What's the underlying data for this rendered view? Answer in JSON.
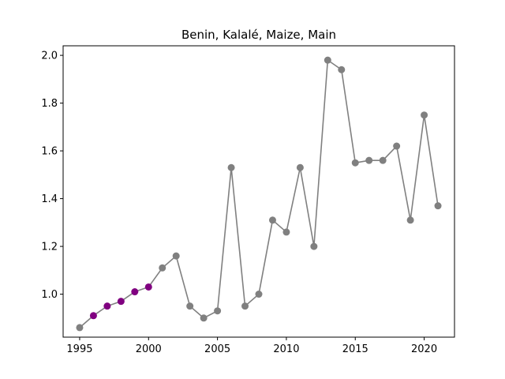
{
  "chart_data": {
    "type": "line",
    "title": "Benin, Kalalé, Maize, Main",
    "xlabel": "",
    "ylabel": "",
    "xlim": [
      1993.8,
      2022.2
    ],
    "ylim": [
      0.82,
      2.04
    ],
    "xticks": [
      1995,
      2000,
      2005,
      2010,
      2015,
      2020
    ],
    "yticks": [
      1.0,
      1.2,
      1.4,
      1.6,
      1.8,
      2.0
    ],
    "ytick_labels": [
      "1.0",
      "1.2",
      "1.4",
      "1.6",
      "1.8",
      "2.0"
    ],
    "grid": false,
    "line_color": "#808080",
    "default_marker_color": "#808080",
    "highlight_marker_color": "#800080",
    "series": [
      {
        "x": [
          1995,
          1996,
          1997,
          1998,
          1999,
          2000,
          2001,
          2002,
          2003,
          2004,
          2005,
          2006,
          2007,
          2008,
          2009,
          2010,
          2011,
          2012,
          2013,
          2014,
          2015,
          2016,
          2017,
          2018,
          2019,
          2020,
          2021
        ],
        "y": [
          0.86,
          0.91,
          0.95,
          0.97,
          1.01,
          1.03,
          1.11,
          1.16,
          0.95,
          0.9,
          0.93,
          1.53,
          0.95,
          1.0,
          1.31,
          1.26,
          1.53,
          1.2,
          1.98,
          1.94,
          1.55,
          1.56,
          1.56,
          1.62,
          1.31,
          1.75,
          1.37
        ],
        "highlighted": [
          false,
          true,
          true,
          true,
          true,
          true,
          false,
          false,
          false,
          false,
          false,
          false,
          false,
          false,
          false,
          false,
          false,
          false,
          false,
          false,
          false,
          false,
          false,
          false,
          false,
          false,
          false
        ]
      }
    ]
  }
}
